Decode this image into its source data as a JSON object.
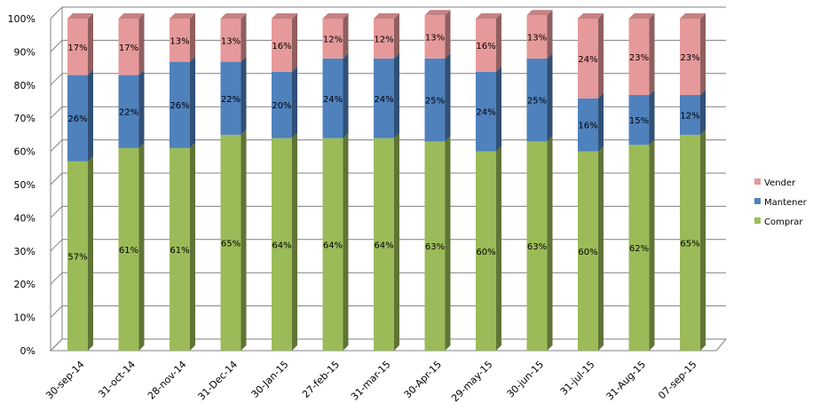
{
  "chart_data": {
    "type": "bar",
    "stacked": true,
    "percent": true,
    "categories": [
      "30-sep-14",
      "31-oct-14",
      "28-nov-14",
      "31-Dec-14",
      "30-Jan-15",
      "27-feb-15",
      "31-mar-15",
      "30-Apr-15",
      "29-may-15",
      "30-jun-15",
      "31-jul-15",
      "31-Aug-15",
      "07-sep-15"
    ],
    "series": [
      {
        "name": "Comprar",
        "color": "#9BBB59",
        "values": [
          57,
          61,
          61,
          65,
          64,
          64,
          64,
          63,
          60,
          63,
          60,
          62,
          65
        ],
        "labels": [
          "57%",
          "61%",
          "61%",
          "65%",
          "64%",
          "64%",
          "64%",
          "63%",
          "60%",
          "63%",
          "60%",
          "62%",
          "65%"
        ]
      },
      {
        "name": "Mantener",
        "color": "#4F81BD",
        "values": [
          26,
          22,
          26,
          22,
          20,
          24,
          24,
          25,
          24,
          25,
          16,
          15,
          12
        ],
        "labels": [
          "26%",
          "22%",
          "26%",
          "22%",
          "20%",
          "24%",
          "24%",
          "25%",
          "24%",
          "25%",
          "16%",
          "15%",
          "12%"
        ]
      },
      {
        "name": "Vender",
        "color": "#E6999A",
        "values": [
          17,
          17,
          13,
          13,
          16,
          12,
          12,
          13,
          16,
          13,
          24,
          23,
          23
        ],
        "labels": [
          "17%",
          "17%",
          "13%",
          "13%",
          "16%",
          "12%",
          "12%",
          "13%",
          "16%",
          "13%",
          "24%",
          "23%",
          "23%"
        ]
      }
    ],
    "yticks": [
      "0%",
      "10%",
      "20%",
      "30%",
      "40%",
      "50%",
      "60%",
      "70%",
      "80%",
      "90%",
      "100%"
    ],
    "ylim": [
      0,
      100
    ],
    "grid": true,
    "legend_position": "right",
    "legend_order": [
      "Vender",
      "Mantener",
      "Comprar"
    ]
  }
}
